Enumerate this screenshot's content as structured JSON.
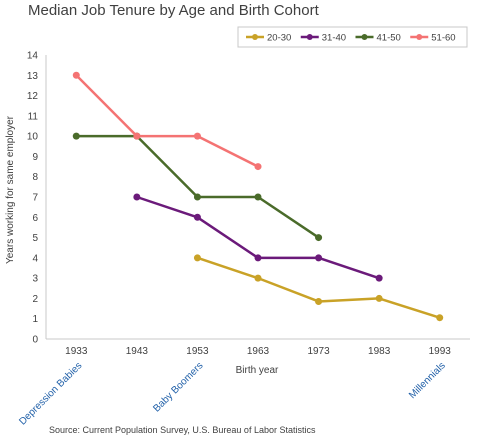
{
  "chart_data": {
    "type": "line",
    "title": "Median Job Tenure by Age and Birth Cohort",
    "xlabel": "Birth year",
    "ylabel": "Years working for same employer",
    "x": [
      1933,
      1943,
      1953,
      1963,
      1973,
      1983,
      1993
    ],
    "xlim": [
      1928,
      1998
    ],
    "ylim": [
      0,
      14
    ],
    "yticks": [
      0,
      1,
      2,
      3,
      4,
      5,
      6,
      7,
      8,
      9,
      10,
      11,
      12,
      13,
      14
    ],
    "grid": false,
    "legend_position": "top-right",
    "series": [
      {
        "name": "20-30",
        "color": "#c9a227",
        "values": [
          null,
          null,
          4,
          3,
          1.85,
          2,
          1.05
        ]
      },
      {
        "name": "31-40",
        "color": "#6b1a7a",
        "values": [
          null,
          7,
          6,
          4,
          4,
          3,
          null
        ]
      },
      {
        "name": "41-50",
        "color": "#4a6b2a",
        "values": [
          10,
          10,
          7,
          7,
          5,
          null,
          null
        ]
      },
      {
        "name": "51-60",
        "color": "#f47373",
        "values": [
          13,
          10,
          10,
          8.5,
          null,
          null,
          null
        ]
      }
    ],
    "cohort_labels": [
      {
        "text": "Depression Babies",
        "x": 1933
      },
      {
        "text": "Baby Boomers",
        "x": 1953
      },
      {
        "text": "Millennials",
        "x": 1993
      }
    ],
    "cohort_label_color": "#1f5fa8",
    "source": "Source: Current Population Survey, U.S. Bureau of Labor Statistics"
  }
}
